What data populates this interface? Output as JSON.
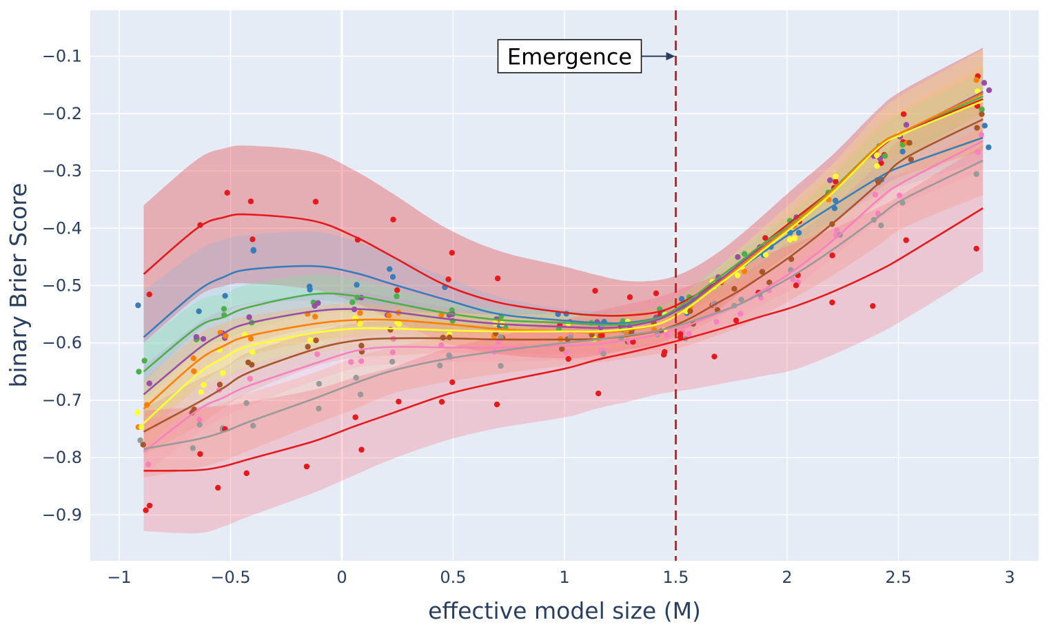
{
  "chart_data": {
    "type": "line",
    "title": "",
    "xlabel": "effective model size (M)",
    "ylabel": "binary Brier Score",
    "xlim": [
      -1.13,
      3.13
    ],
    "ylim": [
      -0.98,
      -0.02
    ],
    "xticks": [
      -1,
      -0.5,
      0,
      0.5,
      1,
      1.5,
      2,
      2.5,
      3
    ],
    "xtick_labels": [
      "−1",
      "−0.5",
      "0",
      "0.5",
      "1",
      "1.5",
      "2",
      "2.5",
      "3"
    ],
    "yticks": [
      -0.9,
      -0.8,
      -0.7,
      -0.6,
      -0.5,
      -0.4,
      -0.3,
      -0.2,
      -0.1
    ],
    "ytick_labels": [
      "−0.9",
      "−0.8",
      "−0.7",
      "−0.6",
      "−0.5",
      "−0.4",
      "−0.3",
      "−0.2",
      "−0.1"
    ],
    "grid": true,
    "background": "#e5ecf6",
    "emergence_line": {
      "x": 1.5,
      "color": "#e41a1c",
      "style": "dashed"
    },
    "annotation": {
      "text": "Emergence",
      "arrow_to": [
        1.5,
        -0.1
      ]
    },
    "x": [
      -0.89,
      -0.65,
      -0.53,
      -0.42,
      -0.13,
      0.06,
      0.23,
      0.47,
      0.71,
      1.0,
      1.15,
      1.28,
      1.43,
      1.55,
      1.68,
      1.79,
      1.9,
      2.03,
      2.21,
      2.41,
      2.53,
      2.88
    ],
    "series": [
      {
        "name": "top-red",
        "color": "#e41a1c",
        "band_color": "#e41a1c",
        "values": [
          -0.48,
          -0.4,
          -0.381,
          -0.376,
          -0.387,
          -0.415,
          -0.45,
          -0.5,
          -0.53,
          -0.547,
          -0.552,
          -0.552,
          -0.545,
          -0.525,
          -0.495,
          -0.462,
          -0.425,
          -0.385,
          -0.33,
          -0.262,
          -0.232,
          -0.175
        ],
        "band": [
          0.12,
          0.12,
          0.12,
          0.12,
          0.12,
          0.115,
          0.11,
          0.1,
          0.09,
          0.08,
          0.07,
          0.06,
          0.055,
          0.05,
          0.05,
          0.05,
          0.05,
          0.055,
          0.06,
          0.07,
          0.075,
          0.09
        ]
      },
      {
        "name": "blue",
        "color": "#377eb8",
        "band_color": "#8fb5d8",
        "values": [
          -0.59,
          -0.51,
          -0.485,
          -0.472,
          -0.466,
          -0.478,
          -0.498,
          -0.525,
          -0.55,
          -0.561,
          -0.565,
          -0.565,
          -0.555,
          -0.535,
          -0.5,
          -0.47,
          -0.44,
          -0.405,
          -0.36,
          -0.312,
          -0.29,
          -0.242
        ],
        "band": [
          0.08,
          0.07,
          0.065,
          0.06,
          0.06,
          0.055,
          0.05,
          0.04,
          0.03,
          0.02,
          0.02,
          0.02,
          0.02,
          0.02,
          0.02,
          0.02,
          0.02,
          0.02,
          0.025,
          0.03,
          0.035,
          0.04
        ]
      },
      {
        "name": "green",
        "color": "#4daf4a",
        "band_color": "#7fe0a0",
        "values": [
          -0.65,
          -0.573,
          -0.555,
          -0.538,
          -0.515,
          -0.518,
          -0.53,
          -0.548,
          -0.56,
          -0.565,
          -0.568,
          -0.567,
          -0.555,
          -0.528,
          -0.49,
          -0.458,
          -0.425,
          -0.39,
          -0.33,
          -0.256,
          -0.23,
          -0.17
        ],
        "band": [
          0.05,
          0.045,
          0.04,
          0.04,
          0.035,
          0.03,
          0.025,
          0.02,
          0.02,
          0.02,
          0.02,
          0.02,
          0.02,
          0.02,
          0.02,
          0.02,
          0.02,
          0.02,
          0.025,
          0.03,
          0.035,
          0.04
        ]
      },
      {
        "name": "purple",
        "color": "#984ea3",
        "band_color": "#c59fd0",
        "values": [
          -0.69,
          -0.612,
          -0.583,
          -0.566,
          -0.545,
          -0.541,
          -0.546,
          -0.558,
          -0.567,
          -0.572,
          -0.574,
          -0.571,
          -0.558,
          -0.532,
          -0.496,
          -0.462,
          -0.43,
          -0.392,
          -0.332,
          -0.258,
          -0.232,
          -0.162
        ],
        "band": [
          0.05,
          0.045,
          0.04,
          0.035,
          0.03,
          0.03,
          0.025,
          0.02,
          0.02,
          0.02,
          0.02,
          0.02,
          0.02,
          0.02,
          0.02,
          0.02,
          0.02,
          0.02,
          0.025,
          0.03,
          0.035,
          0.04
        ]
      },
      {
        "name": "orange",
        "color": "#ff7f00",
        "band_color": "#ffb060",
        "values": [
          -0.715,
          -0.632,
          -0.605,
          -0.588,
          -0.567,
          -0.56,
          -0.56,
          -0.567,
          -0.576,
          -0.58,
          -0.582,
          -0.578,
          -0.566,
          -0.538,
          -0.5,
          -0.466,
          -0.432,
          -0.392,
          -0.332,
          -0.256,
          -0.23,
          -0.165
        ],
        "band": [
          0.05,
          0.045,
          0.04,
          0.035,
          0.03,
          0.03,
          0.025,
          0.025,
          0.02,
          0.02,
          0.02,
          0.02,
          0.02,
          0.02,
          0.02,
          0.02,
          0.02,
          0.025,
          0.03,
          0.035,
          0.04,
          0.05
        ]
      },
      {
        "name": "yellow",
        "color": "#ffff33",
        "band_color": "#f3e87a",
        "values": [
          -0.74,
          -0.655,
          -0.626,
          -0.606,
          -0.583,
          -0.575,
          -0.575,
          -0.578,
          -0.58,
          -0.58,
          -0.58,
          -0.576,
          -0.566,
          -0.54,
          -0.502,
          -0.47,
          -0.436,
          -0.396,
          -0.336,
          -0.26,
          -0.234,
          -0.178
        ],
        "band": [
          0.05,
          0.045,
          0.04,
          0.04,
          0.035,
          0.035,
          0.03,
          0.03,
          0.03,
          0.03,
          0.03,
          0.03,
          0.03,
          0.03,
          0.03,
          0.035,
          0.04,
          0.045,
          0.05,
          0.06,
          0.07,
          0.09
        ]
      },
      {
        "name": "brown",
        "color": "#a65628",
        "band_color": "#d8a070",
        "values": [
          -0.755,
          -0.705,
          -0.678,
          -0.652,
          -0.612,
          -0.596,
          -0.592,
          -0.592,
          -0.594,
          -0.594,
          -0.593,
          -0.588,
          -0.578,
          -0.56,
          -0.532,
          -0.508,
          -0.48,
          -0.445,
          -0.39,
          -0.322,
          -0.278,
          -0.21
        ],
        "band": [
          0.04,
          0.04,
          0.035,
          0.035,
          0.03,
          0.03,
          0.03,
          0.025,
          0.025,
          0.025,
          0.025,
          0.025,
          0.025,
          0.025,
          0.025,
          0.025,
          0.025,
          0.03,
          0.03,
          0.035,
          0.04,
          0.05
        ]
      },
      {
        "name": "pink",
        "color": "#f781bf",
        "band_color": "#f8b4d8",
        "values": [
          -0.79,
          -0.718,
          -0.695,
          -0.675,
          -0.637,
          -0.614,
          -0.607,
          -0.608,
          -0.608,
          -0.605,
          -0.602,
          -0.595,
          -0.585,
          -0.57,
          -0.55,
          -0.532,
          -0.506,
          -0.474,
          -0.42,
          -0.35,
          -0.318,
          -0.248
        ],
        "band": [
          0.04,
          0.04,
          0.035,
          0.035,
          0.03,
          0.03,
          0.03,
          0.025,
          0.025,
          0.025,
          0.025,
          0.025,
          0.025,
          0.025,
          0.025,
          0.025,
          0.025,
          0.03,
          0.03,
          0.035,
          0.04,
          0.05
        ]
      },
      {
        "name": "grey",
        "color": "#999999",
        "band_color": "#ffa080",
        "values": [
          -0.785,
          -0.768,
          -0.755,
          -0.738,
          -0.698,
          -0.67,
          -0.648,
          -0.628,
          -0.614,
          -0.6,
          -0.594,
          -0.587,
          -0.578,
          -0.565,
          -0.548,
          -0.532,
          -0.51,
          -0.482,
          -0.436,
          -0.38,
          -0.348,
          -0.282
        ],
        "band": [
          0.05,
          0.05,
          0.05,
          0.05,
          0.045,
          0.045,
          0.04,
          0.04,
          0.04,
          0.04,
          0.04,
          0.04,
          0.04,
          0.04,
          0.04,
          0.04,
          0.04,
          0.04,
          0.045,
          0.05,
          0.05,
          0.06
        ]
      },
      {
        "name": "bottom-red",
        "color": "#e41a1c",
        "band_color": "#f47080",
        "values": [
          -0.823,
          -0.822,
          -0.815,
          -0.803,
          -0.772,
          -0.745,
          -0.722,
          -0.69,
          -0.668,
          -0.645,
          -0.629,
          -0.618,
          -0.604,
          -0.592,
          -0.578,
          -0.565,
          -0.552,
          -0.537,
          -0.51,
          -0.474,
          -0.448,
          -0.365
        ],
        "band": [
          0.105,
          0.11,
          0.105,
          0.1,
          0.09,
          0.085,
          0.08,
          0.08,
          0.08,
          0.085,
          0.085,
          0.085,
          0.085,
          0.09,
          0.095,
          0.1,
          0.105,
          0.11,
          0.11,
          0.11,
          0.11,
          0.11
        ]
      }
    ]
  }
}
